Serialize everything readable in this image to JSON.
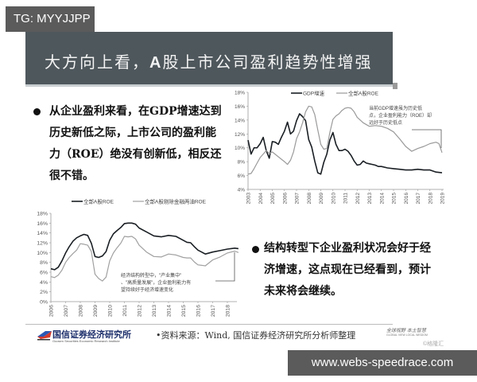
{
  "watermark_top": "TG: MYYJJPP",
  "watermark_bottom": "www.webs-speedrace.com",
  "slide": {
    "title_pre": "大方向上看，",
    "title_bold": "A",
    "title_post": "股上市公司盈利趋势性增强",
    "header_color": "#4e575c",
    "bullets": [
      {
        "lines": [
          "从企业盈利来看，在GDP增速达到",
          "历史新低之际，上市公司的盈利能",
          "力（ROE）绝没有创新低，相反还",
          "很不错。"
        ]
      },
      {
        "lines": [
          "结构转型下企业盈利状况会好于经",
          "济增速，这点现在已经看到，预计",
          "未来将会继续。"
        ]
      }
    ],
    "footer": {
      "logo_cn": "国信证券经济研究所",
      "logo_en": "Guosen Securities Economic Research Institute",
      "source": "•资料来源：Wind, 国信证券经济研究所分析师整理",
      "slogan_cn": "全球视野  本土智慧",
      "slogan_en": "GLOBAL VIEW   LOCAL WISDOM",
      "credit": "©格隆汇"
    }
  },
  "chart_data": [
    {
      "type": "line",
      "title": "",
      "xlabel": "",
      "ylabel": "",
      "ylim": [
        0.04,
        0.18
      ],
      "yticks": [
        "18%",
        "16%",
        "14%",
        "12%",
        "10%",
        "8%",
        "6%",
        "4%"
      ],
      "xticks": [
        "2003",
        "2004",
        "2005",
        "2006",
        "2007",
        "2008",
        "2009",
        "2010",
        "2011",
        "2012",
        "2013",
        "2014",
        "2015",
        "2016",
        "2017",
        "2018",
        "2019"
      ],
      "legend": [
        "GDP增速",
        "全部A股ROE"
      ],
      "legend_position": "top",
      "grid": false,
      "annotation": "当前GDP增速虽为历史低点，企业盈利能力（ROE）却远好于历史低点",
      "series": [
        {
          "name": "GDP增速",
          "color": "#1a1f24",
          "x": [
            2003.0,
            2003.25,
            2003.5,
            2003.75,
            2004.0,
            2004.25,
            2004.5,
            2004.75,
            2005.0,
            2005.25,
            2005.5,
            2005.75,
            2006.0,
            2006.25,
            2006.5,
            2006.75,
            2007.0,
            2007.25,
            2007.5,
            2007.75,
            2008.0,
            2008.25,
            2008.5,
            2008.75,
            2009.0,
            2009.25,
            2009.5,
            2009.75,
            2010.0,
            2010.25,
            2010.5,
            2010.75,
            2011.0,
            2011.25,
            2011.5,
            2011.75,
            2012.0,
            2012.25,
            2012.5,
            2012.75,
            2013.0,
            2013.25,
            2013.5,
            2013.75,
            2014.0,
            2014.5,
            2015.0,
            2015.5,
            2016.0,
            2016.5,
            2017.0,
            2017.5,
            2018.0,
            2018.5,
            2019.0
          ],
          "values": [
            11.1,
            9.1,
            10.0,
            10.0,
            10.6,
            11.5,
            9.6,
            8.5,
            10.9,
            10.8,
            10.5,
            11.5,
            12.4,
            13.7,
            12.0,
            12.4,
            13.9,
            14.9,
            14.5,
            13.9,
            11.2,
            10.1,
            8.1,
            6.4,
            6.2,
            7.9,
            9.1,
            11.1,
            12.2,
            10.5,
            9.6,
            9.6,
            9.8,
            9.5,
            8.9,
            8.1,
            7.5,
            7.6,
            8.1,
            7.8,
            7.7,
            7.6,
            7.5,
            7.3,
            7.3,
            7.1,
            7.0,
            6.9,
            6.8,
            6.8,
            6.9,
            6.8,
            6.8,
            6.5,
            6.4
          ]
        },
        {
          "name": "全部A股ROE",
          "color": "#9a9a9a",
          "x": [
            2003.0,
            2003.25,
            2003.5,
            2003.75,
            2004.0,
            2004.25,
            2004.5,
            2004.75,
            2005.0,
            2005.5,
            2006.0,
            2006.25,
            2006.5,
            2006.75,
            2007.0,
            2007.25,
            2007.5,
            2007.75,
            2008.0,
            2008.25,
            2008.5,
            2008.75,
            2009.0,
            2009.25,
            2009.5,
            2009.75,
            2010.0,
            2010.25,
            2010.5,
            2010.75,
            2011.0,
            2011.25,
            2011.5,
            2011.75,
            2012.0,
            2012.5,
            2013.0,
            2013.5,
            2014.0,
            2014.5,
            2015.0,
            2015.5,
            2016.0,
            2016.5,
            2017.0,
            2017.5,
            2018.0,
            2018.5,
            2018.75,
            2019.0
          ],
          "values": [
            6.2,
            6.3,
            7.0,
            7.8,
            8.6,
            9.1,
            9.6,
            9.2,
            9.4,
            8.7,
            8.0,
            7.6,
            8.2,
            9.4,
            11.3,
            12.3,
            13.6,
            15.2,
            16.0,
            15.9,
            14.8,
            12.6,
            10.5,
            9.8,
            9.9,
            12.2,
            14.1,
            14.6,
            14.9,
            15.4,
            15.7,
            15.8,
            15.7,
            15.2,
            14.4,
            13.6,
            13.1,
            13.2,
            13.1,
            12.8,
            12.3,
            11.3,
            10.2,
            9.5,
            9.9,
            10.2,
            10.6,
            10.8,
            10.6,
            9.3
          ]
        }
      ]
    },
    {
      "type": "line",
      "title": "",
      "xlabel": "",
      "ylabel": "",
      "ylim": [
        0,
        0.18
      ],
      "yticks": [
        "18%",
        "16%",
        "14%",
        "12%",
        "10%",
        "8%",
        "6%",
        "4%",
        "2%",
        "0%"
      ],
      "xticks": [
        "2006",
        "2007",
        "2008",
        "2009",
        "2010",
        "2011",
        "2012",
        "2013",
        "2014",
        "2015",
        "2016",
        "2017",
        "2018"
      ],
      "legend": [
        "全部A股ROE",
        "全部A股剔除金融两油ROE"
      ],
      "legend_position": "top",
      "grid": false,
      "annotation": "经济结构转型中，\"产业集中\"、\"高质量发展\"，企业盈利能力有望持续好于经济增速变化",
      "series": [
        {
          "name": "全部A股ROE",
          "color": "#1a1f24",
          "x": [
            2006.0,
            2006.25,
            2006.5,
            2006.75,
            2007.0,
            2007.25,
            2007.5,
            2007.75,
            2008.0,
            2008.25,
            2008.5,
            2008.75,
            2009.0,
            2009.25,
            2009.5,
            2009.75,
            2010.0,
            2010.25,
            2010.5,
            2010.75,
            2011.0,
            2011.25,
            2011.5,
            2011.75,
            2012.0,
            2012.5,
            2013.0,
            2013.5,
            2014.0,
            2014.5,
            2015.0,
            2015.25,
            2015.5,
            2015.75,
            2016.0,
            2016.25,
            2016.5,
            2017.0,
            2017.5,
            2018.0,
            2018.5,
            2018.75
          ],
          "values": [
            6.7,
            6.5,
            7.0,
            8.3,
            9.9,
            11.2,
            12.3,
            13.0,
            13.4,
            13.7,
            13.5,
            11.9,
            9.2,
            9.0,
            9.3,
            10.2,
            12.5,
            13.8,
            14.5,
            15.1,
            15.9,
            16.0,
            16.0,
            15.8,
            15.0,
            14.2,
            13.4,
            13.2,
            13.5,
            13.3,
            12.5,
            12.1,
            12.0,
            11.2,
            10.5,
            10.1,
            9.7,
            10.1,
            10.4,
            10.7,
            10.9,
            10.8
          ]
        },
        {
          "name": "全部A股剔除金融两油ROE",
          "color": "#a0a0a0",
          "x": [
            2006.0,
            2006.25,
            2006.5,
            2006.75,
            2007.0,
            2007.25,
            2007.5,
            2007.75,
            2008.0,
            2008.25,
            2008.5,
            2008.75,
            2009.0,
            2009.25,
            2009.5,
            2009.75,
            2010.0,
            2010.25,
            2010.5,
            2010.75,
            2011.0,
            2011.25,
            2011.5,
            2011.75,
            2012.0,
            2012.5,
            2013.0,
            2013.5,
            2014.0,
            2014.5,
            2015.0,
            2015.25,
            2015.5,
            2015.75,
            2016.0,
            2016.25,
            2016.5,
            2017.0,
            2017.5,
            2018.0,
            2018.5,
            2018.75
          ],
          "values": [
            5.1,
            4.9,
            5.4,
            6.4,
            8.0,
            9.0,
            9.8,
            10.5,
            11.8,
            11.7,
            11.5,
            10.2,
            5.6,
            4.7,
            4.2,
            5.0,
            8.3,
            9.9,
            11.0,
            11.9,
            13.3,
            13.2,
            13.3,
            12.8,
            11.5,
            10.1,
            9.2,
            9.1,
            9.7,
            9.5,
            9.0,
            8.9,
            8.9,
            8.1,
            7.5,
            7.4,
            7.3,
            8.5,
            9.1,
            9.9,
            10.3,
            10.0
          ]
        }
      ]
    }
  ]
}
